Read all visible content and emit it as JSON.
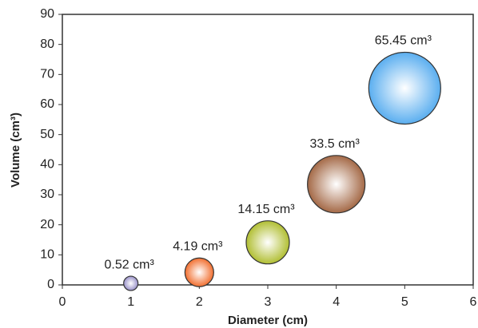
{
  "chart_data": {
    "type": "bubble",
    "x_label": "Diameter (cm)",
    "y_label": "Volume (cm³)",
    "x": [
      1,
      2,
      3,
      4,
      5
    ],
    "values": [
      0.52,
      4.19,
      14.15,
      33.5,
      65.45
    ],
    "value_labels": [
      "0.52 cm³",
      "4.19 cm³",
      "14.15 cm³",
      "33.5 cm³",
      "65.45 cm³"
    ],
    "colors": [
      "#8f86c4",
      "#f0601a",
      "#a9b81e",
      "#9b5a34",
      "#4aa6ee"
    ],
    "xlim": [
      0,
      6
    ],
    "xticks": [
      0,
      1,
      2,
      3,
      4,
      5,
      6
    ],
    "ylim": [
      0,
      90
    ],
    "yticks": [
      0,
      10,
      20,
      30,
      40,
      50,
      60,
      70,
      80,
      90
    ],
    "grid": false
  }
}
